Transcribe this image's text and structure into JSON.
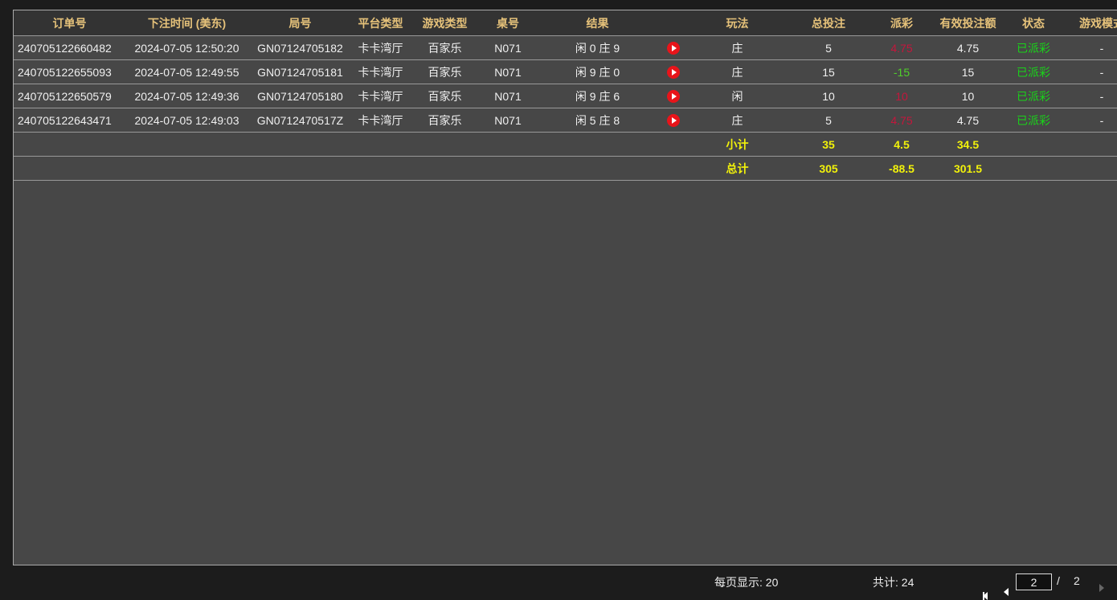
{
  "columns": [
    "订单号",
    "下注时间 (美东)",
    "局号",
    "平台类型",
    "游戏类型",
    "桌号",
    "结果",
    "",
    "玩法",
    "总投注",
    "派彩",
    "有效投注额",
    "状态",
    "游戏模式"
  ],
  "rows": [
    {
      "order": "240705122660482",
      "time": "2024-07-05 12:50:20",
      "round": "GN07124705182",
      "platform": "卡卡湾厅",
      "game": "百家乐",
      "table": "N071",
      "result": "闲 0 庄 9",
      "play": "庄",
      "bet": "5",
      "payout": "4.75",
      "payout_color": "red",
      "valid": "4.75",
      "status": "已派彩",
      "mode": "-"
    },
    {
      "order": "240705122655093",
      "time": "2024-07-05 12:49:55",
      "round": "GN07124705181",
      "platform": "卡卡湾厅",
      "game": "百家乐",
      "table": "N071",
      "result": "闲 9 庄 0",
      "play": "庄",
      "bet": "15",
      "payout": "-15",
      "payout_color": "green",
      "valid": "15",
      "status": "已派彩",
      "mode": "-"
    },
    {
      "order": "240705122650579",
      "time": "2024-07-05 12:49:36",
      "round": "GN07124705180",
      "platform": "卡卡湾厅",
      "game": "百家乐",
      "table": "N071",
      "result": "闲 9 庄 6",
      "play": "闲",
      "bet": "10",
      "payout": "10",
      "payout_color": "red",
      "valid": "10",
      "status": "已派彩",
      "mode": "-"
    },
    {
      "order": "240705122643471",
      "time": "2024-07-05 12:49:03",
      "round": "GN0712470517Z",
      "platform": "卡卡湾厅",
      "game": "百家乐",
      "table": "N071",
      "result": "闲 5 庄 8",
      "play": "庄",
      "bet": "5",
      "payout": "4.75",
      "payout_color": "red",
      "valid": "4.75",
      "status": "已派彩",
      "mode": "-"
    }
  ],
  "subtotal": {
    "label": "小计",
    "bet": "35",
    "payout": "4.5",
    "valid": "34.5"
  },
  "total": {
    "label": "总计",
    "bet": "305",
    "payout": "-88.5",
    "valid": "301.5"
  },
  "pager": {
    "page_size_label": "每页显示: 20",
    "total_label": "共计: 24",
    "current_page": "2",
    "separator": "/",
    "total_pages": "2"
  },
  "colors": {
    "header_text": "#e6c27a",
    "red": "#c4163c",
    "green": "#4fcf2a",
    "status": "#19d419",
    "summary": "#f2f20a",
    "play_icon": "#e8141a"
  },
  "icons": {
    "replay": "play-circle-icon",
    "first": "first-page-icon",
    "prev": "prev-page-icon",
    "next": "next-page-icon"
  }
}
